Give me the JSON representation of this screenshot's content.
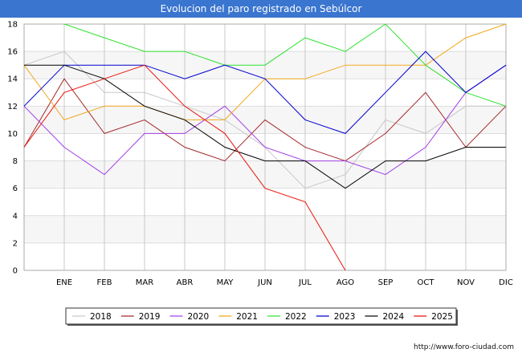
{
  "chart_data": {
    "type": "line",
    "title": "Evolucion del paro registrado en Sebúlcor",
    "categories": [
      "",
      "ENE",
      "FEB",
      "MAR",
      "ABR",
      "MAY",
      "JUN",
      "JUL",
      "AGO",
      "SEP",
      "OCT",
      "NOV",
      "DIC"
    ],
    "ylim": [
      0,
      18
    ],
    "yticks": [
      0,
      2,
      4,
      6,
      8,
      10,
      12,
      14,
      16,
      18
    ],
    "grid": true,
    "legend_position": "bottom",
    "series": [
      {
        "name": "2018",
        "color": "#c8c8c8",
        "values": [
          15,
          16,
          13,
          13,
          12,
          11,
          9,
          6,
          7,
          11,
          10,
          12,
          12
        ]
      },
      {
        "name": "2019",
        "color": "#a52a2a",
        "values": [
          9,
          14,
          10,
          11,
          9,
          8,
          11,
          9,
          8,
          10,
          13,
          9,
          12
        ]
      },
      {
        "name": "2020",
        "color": "#a23ee8",
        "values": [
          12,
          9,
          7,
          10,
          10,
          12,
          9,
          8,
          8,
          7,
          9,
          13,
          15
        ]
      },
      {
        "name": "2021",
        "color": "#f2a81d",
        "values": [
          15,
          11,
          12,
          12,
          11,
          11,
          14,
          14,
          15,
          15,
          15,
          17,
          18
        ]
      },
      {
        "name": "2022",
        "color": "#2ee22e",
        "values": [
          null,
          18,
          17,
          16,
          16,
          15,
          15,
          17,
          16,
          18,
          15,
          13,
          12
        ]
      },
      {
        "name": "2023",
        "color": "#0000cc",
        "values": [
          12,
          15,
          15,
          15,
          14,
          15,
          14,
          11,
          10,
          13,
          16,
          13,
          15
        ]
      },
      {
        "name": "2024",
        "color": "#000000",
        "values": [
          15,
          15,
          14,
          12,
          11,
          9,
          8,
          8,
          6,
          8,
          8,
          9,
          9
        ]
      },
      {
        "name": "2025",
        "color": "#e8150f",
        "values": [
          9,
          13,
          14,
          15,
          12,
          10,
          6,
          5,
          0,
          null,
          null,
          null,
          null
        ]
      }
    ]
  },
  "footer": "http://www.foro-ciudad.com"
}
